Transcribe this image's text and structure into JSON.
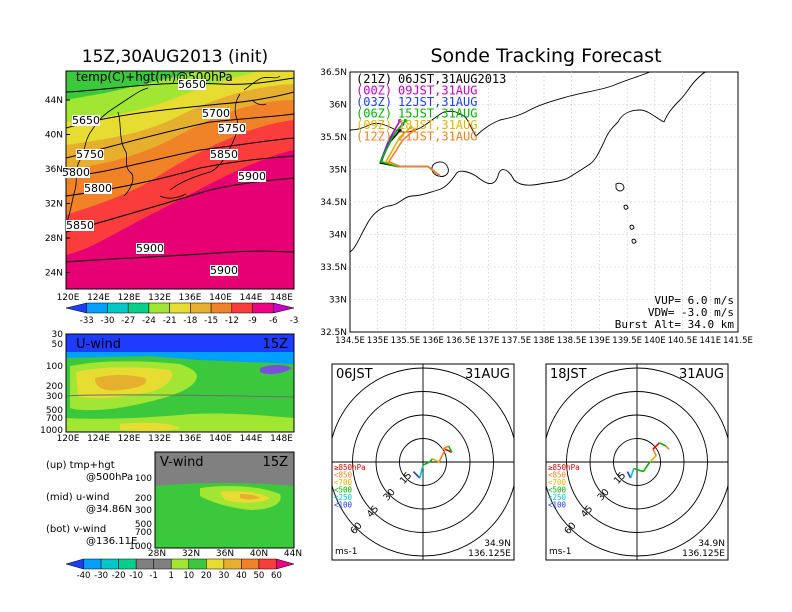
{
  "title": "Sonde Tracking Forecast",
  "upper_left": {
    "title": "15Z,30AUG2013 (init)",
    "label": "temp(C)+hgt(m)@500hPa",
    "lat_ticks": [
      "44N",
      "40N",
      "36N",
      "32N",
      "28N",
      "24N"
    ],
    "lon_ticks": [
      "120E",
      "124E",
      "128E",
      "132E",
      "136E",
      "140E",
      "144E",
      "148E"
    ],
    "contours": [
      "5650",
      "5650",
      "5700",
      "5750",
      "5750",
      "5800",
      "5800",
      "5850",
      "5850",
      "5900",
      "5900",
      "5900"
    ],
    "colorbar": [
      "-33",
      "-30",
      "-27",
      "-24",
      "-21",
      "-18",
      "-15",
      "-12",
      "-9",
      "-6",
      "-3"
    ],
    "colors": [
      "#1e3cff",
      "#00a0ff",
      "#00c8c8",
      "#00d28c",
      "#a0e632",
      "#e6dc32",
      "#e6af2d",
      "#f08228",
      "#fa3c3c",
      "#f00082",
      "#c800c8"
    ]
  },
  "u_wind": {
    "label": "U-wind",
    "time": "15Z",
    "p_ticks": [
      "30",
      "50",
      "100",
      "200",
      "300",
      "500",
      "700",
      "1000"
    ],
    "lon_ticks": [
      "120E",
      "124E",
      "128E",
      "132E",
      "136E",
      "140E",
      "144E",
      "148E"
    ]
  },
  "v_wind": {
    "label": "V-wind",
    "time": "15Z",
    "p_ticks": [
      "100",
      "200",
      "300",
      "500",
      "700",
      "1000"
    ],
    "lat_ticks": [
      "28N",
      "32N",
      "36N",
      "40N",
      "44N"
    ]
  },
  "notes": {
    "up1": "(up) tmp+hgt",
    "up2": "@500hPa",
    "mid1": "(mid) u-wind",
    "mid2": "@34.86N",
    "bot1": "(bot) v-wind",
    "bot2": "@136.11E"
  },
  "wind_colorbar": {
    "labels": [
      "-40",
      "-30",
      "-20",
      "-10",
      "-1",
      "1",
      "10",
      "20",
      "30",
      "40",
      "50",
      "60"
    ],
    "colors": [
      "#1e3cff",
      "#00a0ff",
      "#00c8c8",
      "#00d28c",
      "#808080",
      "#808080",
      "#a0e632",
      "#3cc83c",
      "#e6dc32",
      "#e6af2d",
      "#f08228",
      "#fa3c3c",
      "#f00082"
    ]
  },
  "map": {
    "legend": [
      {
        "zone": "(21Z)",
        "time": "06JST,31AUG2013",
        "color": "#000000"
      },
      {
        "zone": "(00Z)",
        "time": "09JST,31AUG",
        "color": "#c800c8"
      },
      {
        "zone": "(03Z)",
        "time": "12JST,31AUG",
        "color": "#1e3cff"
      },
      {
        "zone": "(06Z)",
        "time": "15JST,31AUG",
        "color": "#00b400"
      },
      {
        "zone": "(09Z)",
        "time": "18JST,31AUG",
        "color": "#e6b400"
      },
      {
        "zone": "(12Z)",
        "time": "21JST,31AUG",
        "color": "#f08228"
      }
    ],
    "lat_ticks": [
      "36.5N",
      "36N",
      "35.5N",
      "35N",
      "34.5N",
      "34N",
      "33.5N",
      "33N",
      "32.5N"
    ],
    "lon_ticks": [
      "134.5E",
      "135E",
      "135.5E",
      "136E",
      "136.5E",
      "137E",
      "137.5E",
      "138E",
      "138.5E",
      "139E",
      "139.5E",
      "140E",
      "140.5E",
      "141E",
      "141.5E"
    ],
    "vup": "VUP= 6.0 m/s",
    "vdw": "VDW= -3.0 m/s",
    "burst": "Burst Alt= 34.0 km"
  },
  "hodo1": {
    "time": "06JST",
    "date": "31AUG",
    "rings": [
      "15",
      "30",
      "45",
      "60"
    ],
    "unit": "ms-1",
    "lat": "34.9N",
    "lon": "136.125E"
  },
  "hodo2": {
    "time": "18JST",
    "date": "31AUG",
    "rings": [
      "15",
      "30",
      "45",
      "60"
    ],
    "unit": "ms-1",
    "lat": "34.9N",
    "lon": "136.125E"
  },
  "hodo_legend": [
    {
      "label": "≥850hPa",
      "color": "#e60000"
    },
    {
      "label": "<850",
      "color": "#f08228"
    },
    {
      "label": "<700",
      "color": "#e6b400"
    },
    {
      "label": "<500",
      "color": "#00b400"
    },
    {
      "label": "<250",
      "color": "#00c8c8"
    },
    {
      "label": "<100",
      "color": "#1e3cff"
    }
  ],
  "chart_data": {
    "type": "line",
    "title": "Sonde Tracking Forecast",
    "xlim": [
      134.5,
      141.5
    ],
    "ylim": [
      32.5,
      36.5
    ],
    "series": [
      {
        "name": "(21Z) 06JST,31AUG2013",
        "x": [
          136.125,
          135.9,
          135.35,
          135.05,
          135.2,
          135.4
        ],
        "y": [
          34.9,
          35.05,
          35.05,
          35.1,
          35.4,
          35.6
        ]
      },
      {
        "name": "(00Z) 09JST,31AUG",
        "x": [
          136.125,
          135.9,
          135.35,
          135.05,
          135.2,
          135.4
        ],
        "y": [
          34.9,
          35.05,
          35.05,
          35.12,
          35.45,
          35.75
        ]
      },
      {
        "name": "(03Z) 12JST,31AUG",
        "x": [
          136.125,
          135.9,
          135.35,
          135.05,
          135.25,
          135.45
        ],
        "y": [
          34.9,
          35.05,
          35.05,
          35.12,
          35.5,
          35.7
        ]
      },
      {
        "name": "(06Z) 15JST,31AUG",
        "x": [
          136.125,
          135.9,
          135.35,
          135.05,
          135.3,
          135.5
        ],
        "y": [
          34.9,
          35.05,
          35.05,
          35.12,
          35.55,
          35.75
        ]
      },
      {
        "name": "(09Z) 18JST,31AUG",
        "x": [
          136.125,
          135.9,
          135.4,
          135.15,
          135.4,
          135.6
        ],
        "y": [
          34.9,
          35.05,
          35.05,
          35.12,
          35.5,
          35.65
        ]
      },
      {
        "name": "(12Z) 21JST,31AUG",
        "x": [
          136.125,
          135.9,
          135.4,
          135.2,
          135.45,
          135.65
        ],
        "y": [
          34.9,
          35.05,
          35.05,
          35.12,
          35.45,
          35.6
        ]
      }
    ],
    "hodographs": [
      {
        "x": [
          -3,
          -1,
          0,
          2,
          3,
          5,
          7,
          9,
          8,
          6
        ],
        "y": [
          -3,
          -5,
          -1,
          0,
          1,
          0,
          4,
          3,
          5,
          4
        ]
      },
      {
        "x": [
          -3,
          -2,
          -1,
          2,
          4,
          6,
          5,
          7,
          9,
          10
        ],
        "y": [
          -3,
          -5,
          -2,
          -3,
          0,
          2,
          4,
          6,
          5,
          4
        ]
      }
    ]
  }
}
